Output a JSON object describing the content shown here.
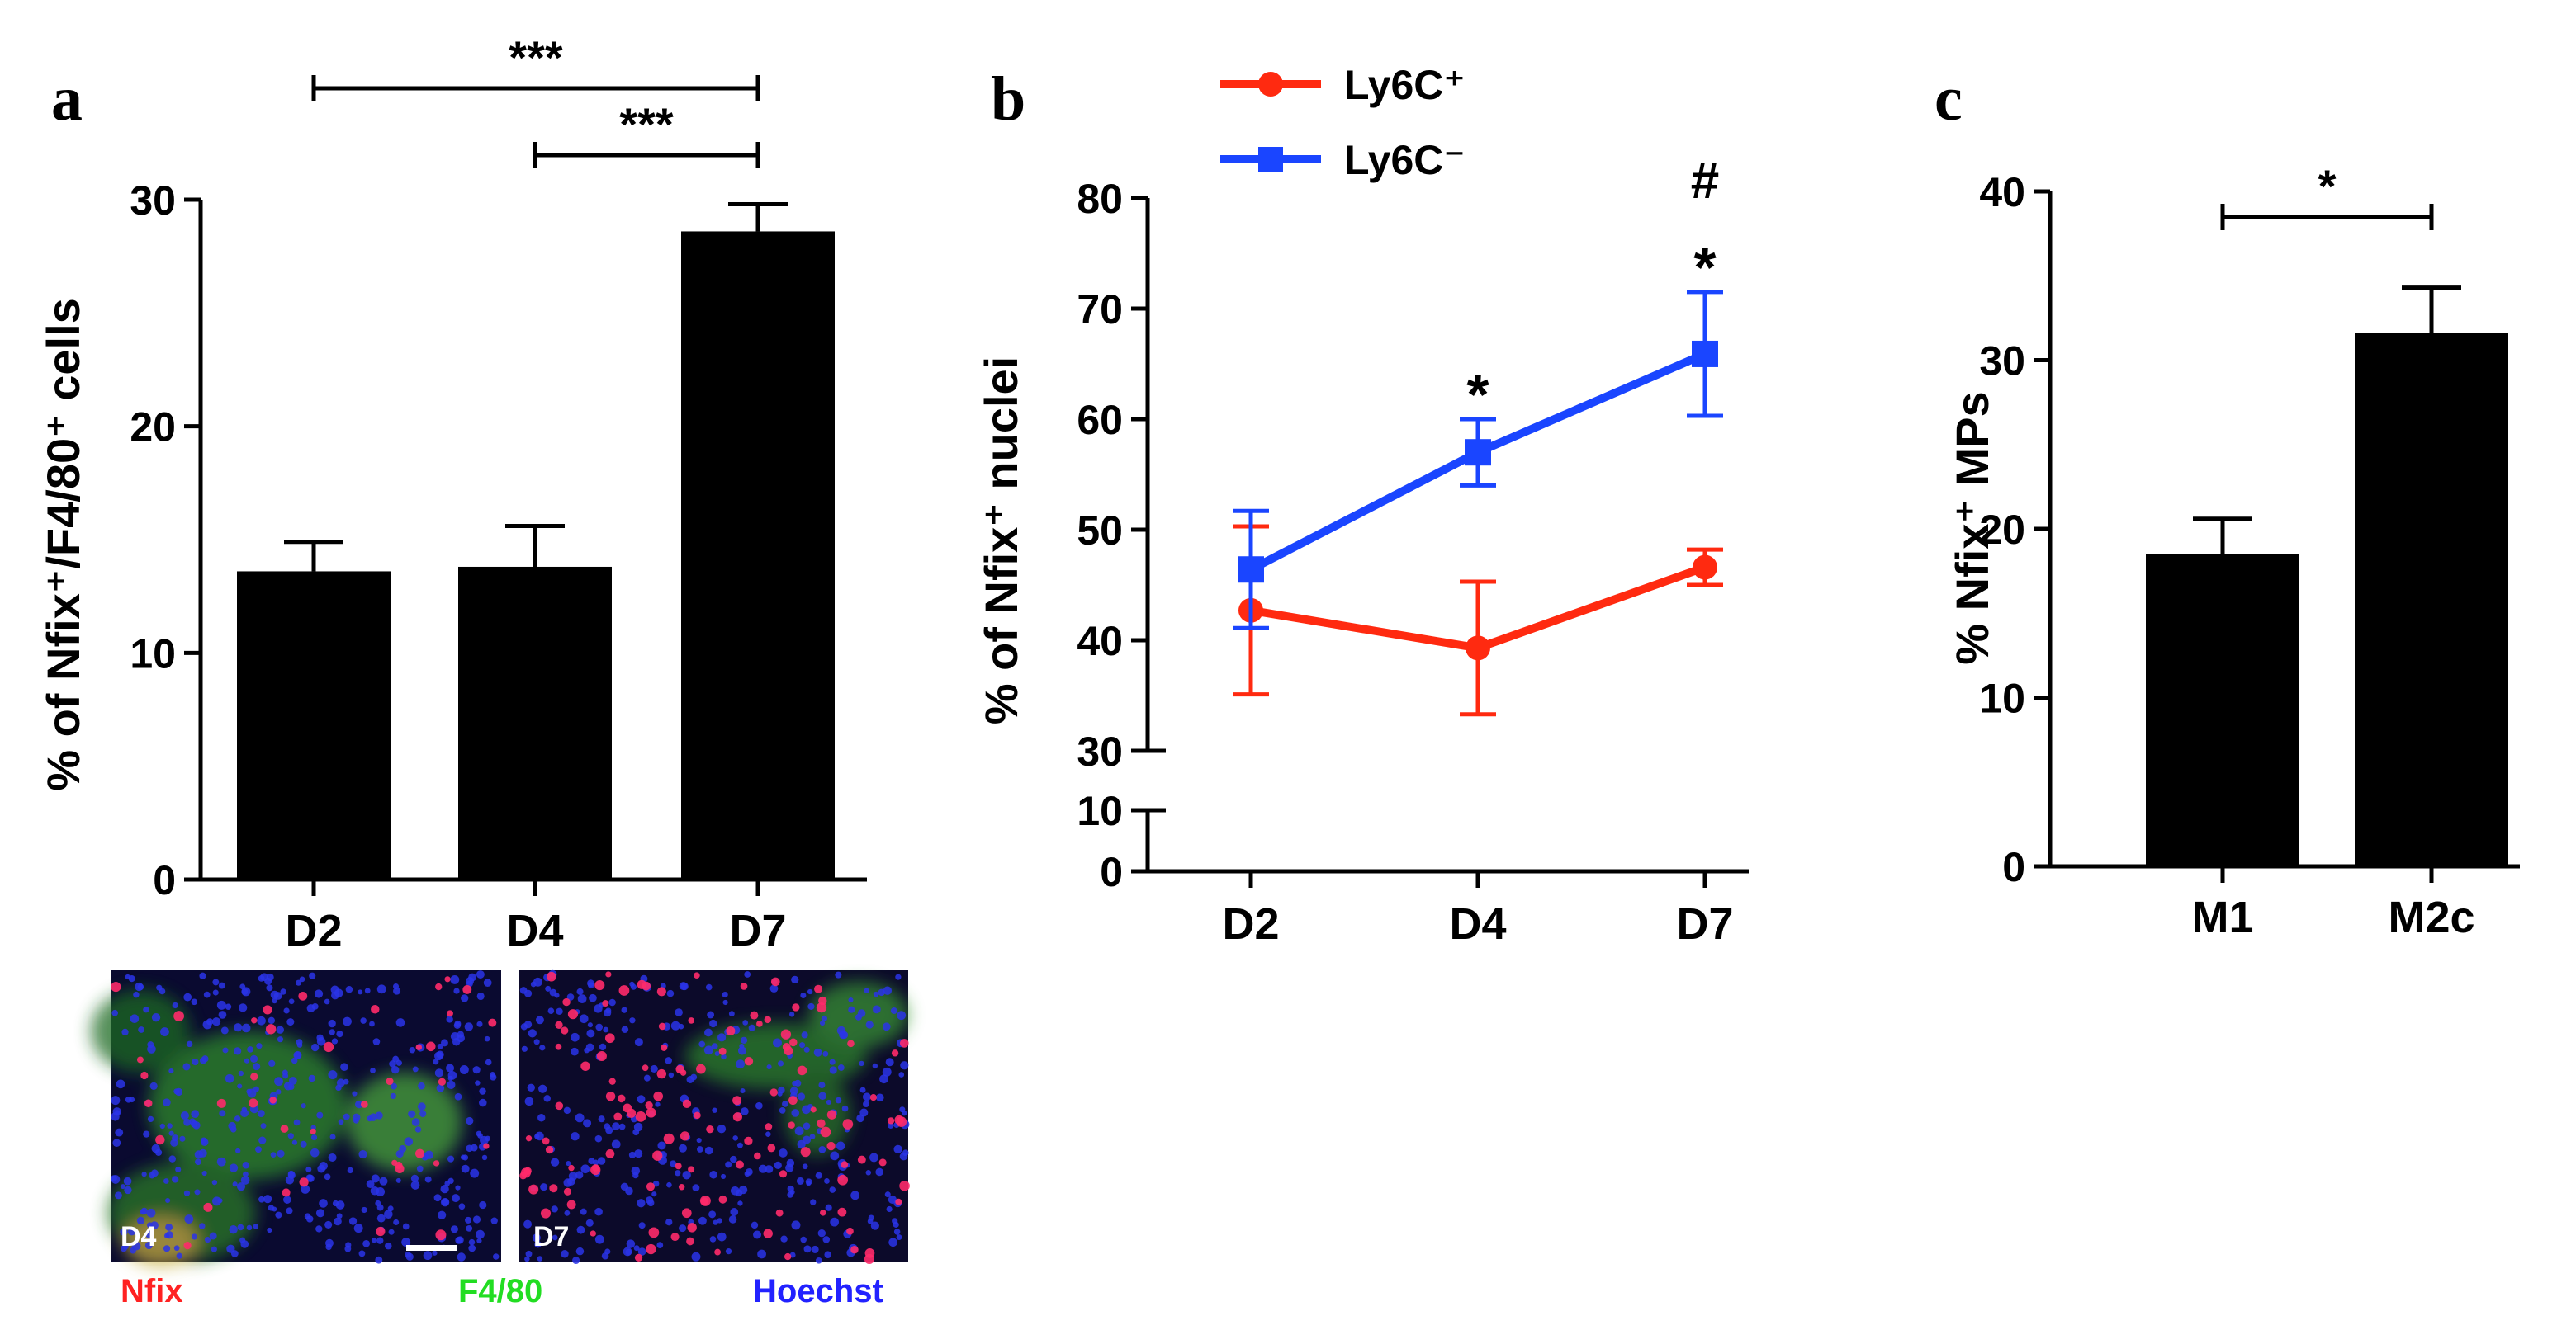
{
  "chart_data": [
    {
      "panel": "a",
      "type": "bar",
      "ylabel": "% of Nfix⁺/F4/80⁺ cells",
      "ylim": [
        0,
        30
      ],
      "yticks": [
        0,
        10,
        20,
        30
      ],
      "categories": [
        "D2",
        "D4",
        "D7"
      ],
      "values": [
        13.6,
        13.8,
        28.6
      ],
      "errors": [
        1.3,
        1.8,
        1.2
      ],
      "significance": [
        {
          "from": "D2",
          "to": "D7",
          "label": "***"
        },
        {
          "from": "D4",
          "to": "D7",
          "label": "***"
        }
      ],
      "micrographs": [
        {
          "label": "D4"
        },
        {
          "label": "D7"
        }
      ],
      "stain_legend": [
        {
          "label": "Nfix",
          "color": "#ff2222"
        },
        {
          "label": "F4/80",
          "color": "#22dd22"
        },
        {
          "label": "Hoechst",
          "color": "#2222ff"
        }
      ]
    },
    {
      "panel": "b",
      "type": "line",
      "ylabel": "% of Nfix⁺ nuclei",
      "yticks": [
        0,
        10,
        30,
        40,
        50,
        60,
        70,
        80
      ],
      "ylim": [
        0,
        80
      ],
      "axis_break": [
        10,
        30
      ],
      "categories": [
        "D2",
        "D4",
        "D7"
      ],
      "series": [
        {
          "name": "Ly6C⁺",
          "marker": "circle",
          "color": "#ff2a10",
          "values": [
            42.7,
            39.3,
            46.6
          ],
          "errors": [
            7.6,
            6.0,
            1.6
          ]
        },
        {
          "name": "Ly6C⁻",
          "marker": "square",
          "color": "#1a45ff",
          "values": [
            46.4,
            57.0,
            65.9
          ],
          "errors": [
            5.3,
            3.0,
            5.6
          ]
        }
      ],
      "annotations": [
        {
          "category": "D4",
          "label": "*"
        },
        {
          "category": "D7",
          "label": "*"
        },
        {
          "category": "D7",
          "label": "#"
        }
      ]
    },
    {
      "panel": "c",
      "type": "bar",
      "ylabel": "% Nfix⁺ MPs",
      "ylim": [
        0,
        40
      ],
      "yticks": [
        0,
        10,
        20,
        30,
        40
      ],
      "categories": [
        "M1",
        "M2c"
      ],
      "values": [
        18.5,
        31.6
      ],
      "errors": [
        2.1,
        2.7
      ],
      "significance": [
        {
          "from": "M1",
          "to": "M2c",
          "label": "*"
        }
      ]
    }
  ]
}
